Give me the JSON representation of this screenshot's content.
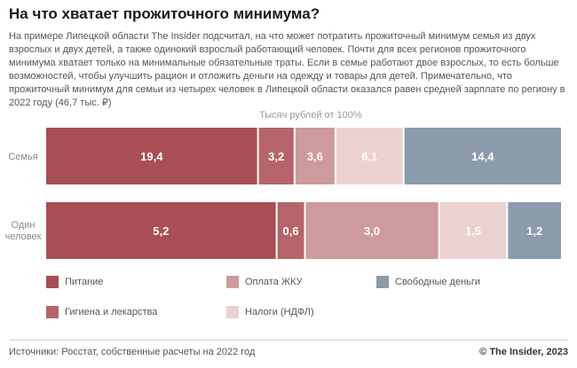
{
  "header": {
    "title": "На что хватает прожиточного минимума?",
    "description": "На примере Липецкой области The Insider подсчитал, на что может потратить прожиточный минимум семья из двух взрослых и двух детей, а также одинокий взрослый работающий человек. Почти для всех регионов прожиточного минимума хватает только на минимальные обязательные траты. Если в семье работают двое взрослых, то есть больше возможностей, чтобы улучшить рацион и отложить деньги на одежду и товары для детей. Примечательно, что прожиточный минимум для семьи из четырех человек в Липецкой области оказался равен средней зарплате по региону в 2022 году (46,7 тыс. ₽)"
  },
  "chart_data": {
    "type": "bar",
    "orientation": "horizontal",
    "stacked": true,
    "unit_label": "Тысяч рублей от 100%",
    "categories": [
      "Семья",
      "Один человек"
    ],
    "series": [
      {
        "name": "Питание",
        "color": "#a84f55",
        "values": [
          19.4,
          5.2
        ],
        "labels": [
          "19,4",
          "5,2"
        ]
      },
      {
        "name": "Гигиена и лекарства",
        "color": "#b6646b",
        "values": [
          3.2,
          0.6
        ],
        "labels": [
          "3,2",
          "0,6"
        ]
      },
      {
        "name": "Оплата ЖКУ",
        "color": "#cf9a9c",
        "values": [
          3.6,
          3.0
        ],
        "labels": [
          "3,6",
          "3,0"
        ]
      },
      {
        "name": "Налоги (НДФЛ)",
        "color": "#ecd1d1",
        "values": [
          6.1,
          1.5
        ],
        "labels": [
          "6,1",
          "1,5"
        ]
      },
      {
        "name": "Свободные деньги",
        "color": "#8b9bab",
        "values": [
          14.4,
          1.2
        ],
        "labels": [
          "14,4",
          "1,2"
        ]
      }
    ],
    "legend": {
      "placement": "bottom",
      "order": [
        "Питание",
        "Оплата ЖКУ",
        "Свободные деньги",
        "Гигиена и лекарства",
        "Налоги (НДФЛ)"
      ]
    }
  },
  "footer": {
    "source": "Источники: Росстат, собственные расчеты на 2022 год",
    "copyright": "© The Insider, 2023"
  }
}
